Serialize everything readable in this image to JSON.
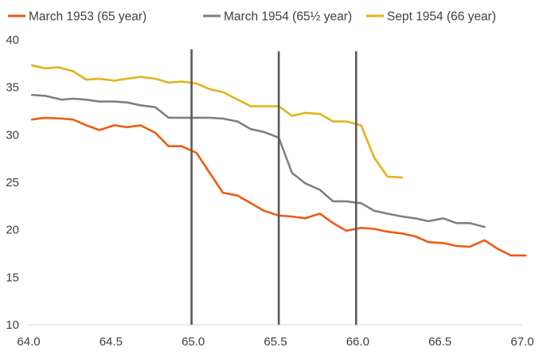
{
  "chart_data": {
    "type": "line",
    "title": "",
    "xlabel": "",
    "ylabel": "",
    "xlim": [
      64.0,
      67.0
    ],
    "ylim": [
      10,
      40
    ],
    "x_ticks": [
      "64.0",
      "64.5",
      "65.0",
      "65.5",
      "66.0",
      "66.5",
      "67.0"
    ],
    "y_ticks": [
      "10",
      "15",
      "20",
      "25",
      "30",
      "35",
      "40"
    ],
    "grid": false,
    "legend_position": "top",
    "series": [
      {
        "name": "March 1953 (65 year)",
        "color": "#f05a14",
        "points": [
          [
            64.02,
            31.6
          ],
          [
            64.1,
            31.8
          ],
          [
            64.2,
            31.7
          ],
          [
            64.27,
            31.6
          ],
          [
            64.35,
            31.0
          ],
          [
            64.43,
            30.5
          ],
          [
            64.52,
            31.0
          ],
          [
            64.6,
            30.8
          ],
          [
            64.68,
            31.0
          ],
          [
            64.77,
            30.2
          ],
          [
            64.85,
            28.8
          ],
          [
            64.93,
            28.8
          ],
          [
            65.02,
            28.1
          ],
          [
            65.1,
            26.0
          ],
          [
            65.18,
            23.9
          ],
          [
            65.27,
            23.6
          ],
          [
            65.35,
            22.8
          ],
          [
            65.43,
            22.0
          ],
          [
            65.52,
            21.5
          ],
          [
            65.6,
            21.4
          ],
          [
            65.68,
            21.2
          ],
          [
            65.77,
            21.7
          ],
          [
            65.85,
            20.7
          ],
          [
            65.93,
            19.9
          ],
          [
            66.02,
            20.2
          ],
          [
            66.1,
            20.1
          ],
          [
            66.18,
            19.8
          ],
          [
            66.27,
            19.6
          ],
          [
            66.35,
            19.3
          ],
          [
            66.43,
            18.7
          ],
          [
            66.52,
            18.6
          ],
          [
            66.6,
            18.3
          ],
          [
            66.68,
            18.2
          ],
          [
            66.77,
            18.9
          ],
          [
            66.85,
            18.0
          ],
          [
            66.93,
            17.3
          ],
          [
            67.02,
            17.3
          ]
        ]
      },
      {
        "name": "March 1954 (65½ year)",
        "color": "#808080",
        "points": [
          [
            64.02,
            34.2
          ],
          [
            64.1,
            34.1
          ],
          [
            64.2,
            33.7
          ],
          [
            64.27,
            33.8
          ],
          [
            64.35,
            33.7
          ],
          [
            64.43,
            33.5
          ],
          [
            64.52,
            33.5
          ],
          [
            64.6,
            33.4
          ],
          [
            64.68,
            33.1
          ],
          [
            64.77,
            32.9
          ],
          [
            64.85,
            31.8
          ],
          [
            64.93,
            31.8
          ],
          [
            65.02,
            31.8
          ],
          [
            65.1,
            31.8
          ],
          [
            65.18,
            31.7
          ],
          [
            65.27,
            31.4
          ],
          [
            65.35,
            30.6
          ],
          [
            65.43,
            30.3
          ],
          [
            65.52,
            29.7
          ],
          [
            65.6,
            26.0
          ],
          [
            65.68,
            24.9
          ],
          [
            65.77,
            24.2
          ],
          [
            65.85,
            23.0
          ],
          [
            65.93,
            23.0
          ],
          [
            66.02,
            22.8
          ],
          [
            66.1,
            22.0
          ],
          [
            66.18,
            21.7
          ],
          [
            66.27,
            21.4
          ],
          [
            66.35,
            21.2
          ],
          [
            66.43,
            20.9
          ],
          [
            66.52,
            21.2
          ],
          [
            66.6,
            20.7
          ],
          [
            66.68,
            20.7
          ],
          [
            66.77,
            20.3
          ]
        ]
      },
      {
        "name": "Sept 1954 (66 year)",
        "color": "#e1b31b",
        "points": [
          [
            64.02,
            37.3
          ],
          [
            64.1,
            37.0
          ],
          [
            64.18,
            37.1
          ],
          [
            64.27,
            36.7
          ],
          [
            64.35,
            35.8
          ],
          [
            64.43,
            35.9
          ],
          [
            64.52,
            35.7
          ],
          [
            64.6,
            35.9
          ],
          [
            64.68,
            36.1
          ],
          [
            64.77,
            35.9
          ],
          [
            64.85,
            35.5
          ],
          [
            64.93,
            35.6
          ],
          [
            65.02,
            35.4
          ],
          [
            65.1,
            34.8
          ],
          [
            65.18,
            34.5
          ],
          [
            65.27,
            33.7
          ],
          [
            65.35,
            33.0
          ],
          [
            65.43,
            33.0
          ],
          [
            65.52,
            33.0
          ],
          [
            65.6,
            32.0
          ],
          [
            65.68,
            32.3
          ],
          [
            65.77,
            32.2
          ],
          [
            65.85,
            31.4
          ],
          [
            65.93,
            31.4
          ],
          [
            66.02,
            31.0
          ],
          [
            66.1,
            27.6
          ],
          [
            66.18,
            25.6
          ],
          [
            66.27,
            25.5
          ]
        ]
      }
    ],
    "vertical_markers": [
      {
        "x": 64.99,
        "y_range": [
          10,
          39.0
        ],
        "color": "#595959"
      },
      {
        "x": 65.52,
        "y_range": [
          10,
          38.8
        ],
        "color": "#595959"
      },
      {
        "x": 65.99,
        "y_range": [
          10,
          38.8
        ],
        "color": "#595959"
      }
    ]
  }
}
